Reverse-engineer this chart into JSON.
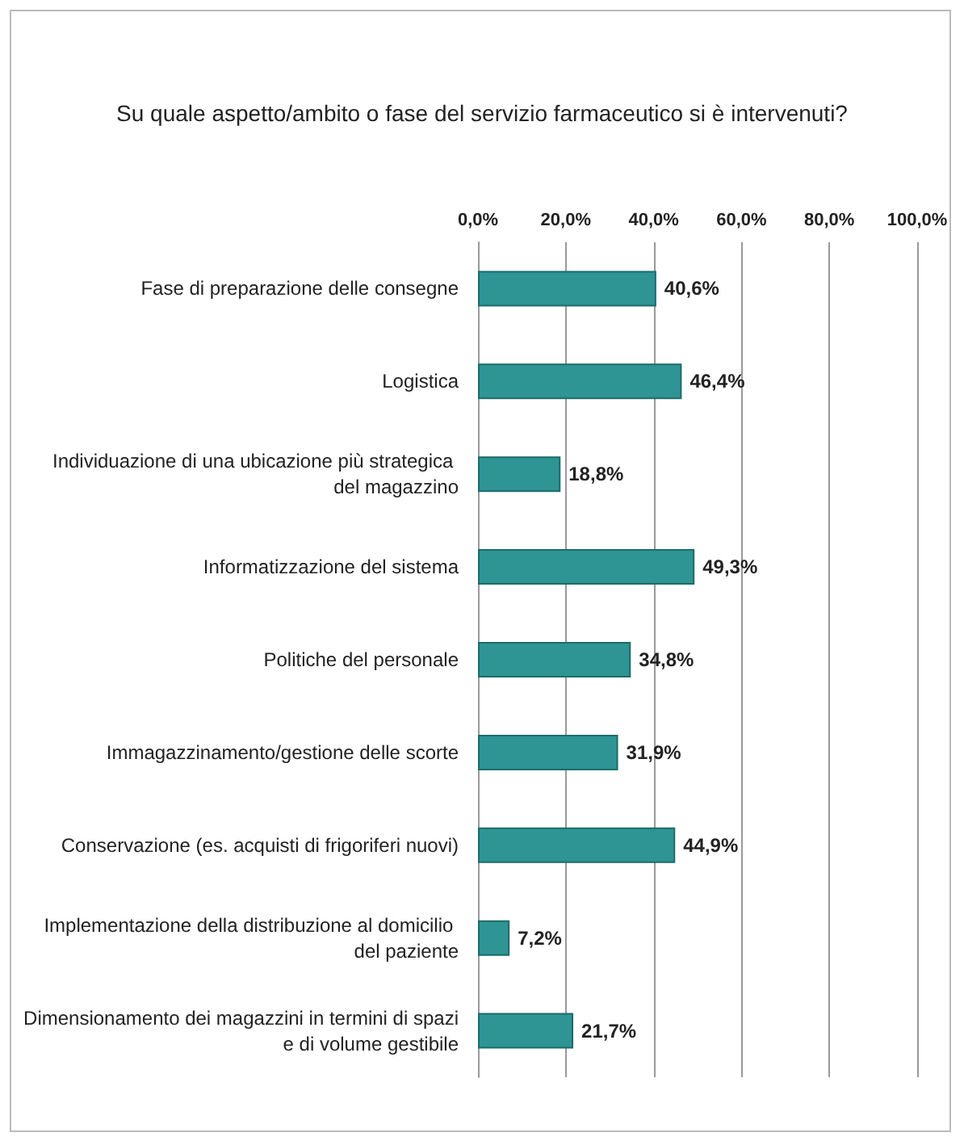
{
  "chart_data": {
    "type": "bar",
    "orientation": "horizontal",
    "title": "Su quale aspetto/ambito o fase del servizio farmaceutico si è intervenuti?",
    "categories": [
      "Fase di preparazione delle consegne",
      "Logistica",
      "Individuazione di una ubicazione più strategica del magazzino",
      "Informatizzazione del sistema",
      "Politiche del personale",
      "Immagazzinamento/gestione delle scorte",
      "Conservazione (es. acquisti di frigoriferi nuovi)",
      "Implementazione della distribuzione al domicilio del paziente",
      "Dimensionamento dei magazzini in termini di spazi e di volume gestibile"
    ],
    "values": [
      40.6,
      46.4,
      18.8,
      49.3,
      34.8,
      31.9,
      44.9,
      7.2,
      21.7
    ],
    "value_labels": [
      "40,6%",
      "46,4%",
      "18,8%",
      "49,3%",
      "34,8%",
      "31,9%",
      "44,9%",
      "7,2%",
      "21,7%"
    ],
    "color": "#2e9494",
    "xlim": [
      0,
      100
    ],
    "xticks": [
      {
        "value": 0,
        "label": "0,0%"
      },
      {
        "value": 20,
        "label": "20,0%"
      },
      {
        "value": 40,
        "label": "40,0%"
      },
      {
        "value": 60,
        "label": "60,0%"
      },
      {
        "value": 80,
        "label": "80,0%"
      },
      {
        "value": 100,
        "label": "100,0%"
      }
    ],
    "grid": "x"
  }
}
